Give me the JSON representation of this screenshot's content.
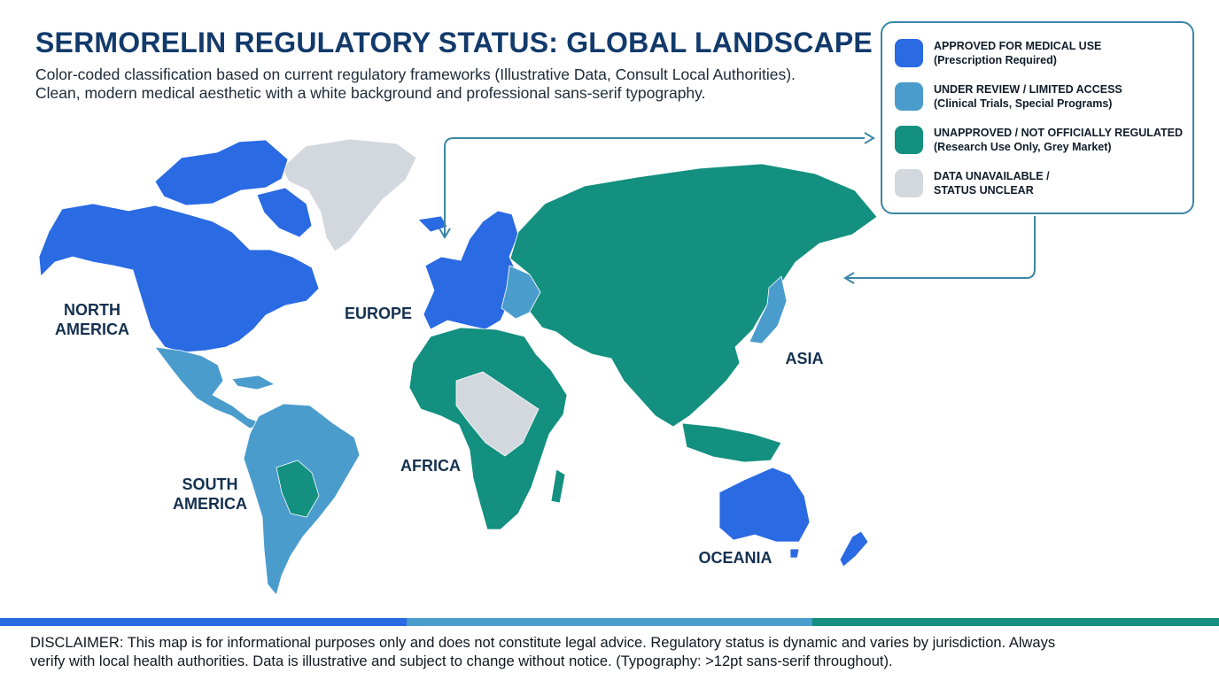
{
  "header": {
    "title": "SERMORELIN REGULATORY STATUS: GLOBAL LANDSCAPE",
    "subtitle_line1": "Color-coded classification based on current regulatory frameworks (Illustrative Data, Consult Local Authorities).",
    "subtitle_line2": "Clean, modern medical aesthetic with a white background and professional sans-serif typography."
  },
  "colors": {
    "approved": "#2a6ae3",
    "review": "#4a9ccd",
    "unapproved": "#13907f",
    "unavailable": "#d3d8df",
    "accent_line": "#3b86a6"
  },
  "legend": {
    "items": [
      {
        "key": "approved",
        "line1": "APPROVED FOR MEDICAL USE",
        "line2": "(Prescription Required)"
      },
      {
        "key": "review",
        "line1": "UNDER REVIEW / LIMITED ACCESS",
        "line2": "(Clinical Trials, Special Programs)"
      },
      {
        "key": "unapproved",
        "line1": "UNAPPROVED / NOT OFFICIALLY REGULATED",
        "line2": "(Research Use Only, Grey Market)"
      },
      {
        "key": "unavailable",
        "line1": "DATA UNAVAILABLE /",
        "line2": "STATUS UNCLEAR"
      }
    ]
  },
  "regions": {
    "north_america": {
      "line1": "NORTH",
      "line2": "AMERICA"
    },
    "europe": {
      "line1": "EUROPE",
      "line2": ""
    },
    "asia": {
      "line1": "ASIA",
      "line2": ""
    },
    "africa": {
      "line1": "AFRICA",
      "line2": ""
    },
    "south_america": {
      "line1": "SOUTH",
      "line2": "AMERICA"
    },
    "oceania": {
      "line1": "OCEANIA",
      "line2": ""
    }
  },
  "map_status": {
    "north_america": "approved",
    "central_america": "review",
    "greenland": "unavailable",
    "europe_west": "approved",
    "europe_east": "review",
    "russia_asia": "unapproved",
    "japan": "review",
    "africa": "unapproved",
    "central_africa": "unavailable",
    "south_america": "review",
    "south_america_center": "unapproved",
    "australia": "approved",
    "new_zealand": "approved"
  },
  "footer": {
    "disclaimer_line1": "DISCLAIMER: This map is for informational purposes only and does not constitute legal advice. Regulatory status is dynamic and varies by jurisdiction. Always",
    "disclaimer_line2": "verify with local health authorities. Data is illustrative and subject to change without notice. (Typography: >12pt sans-serif throughout)."
  }
}
